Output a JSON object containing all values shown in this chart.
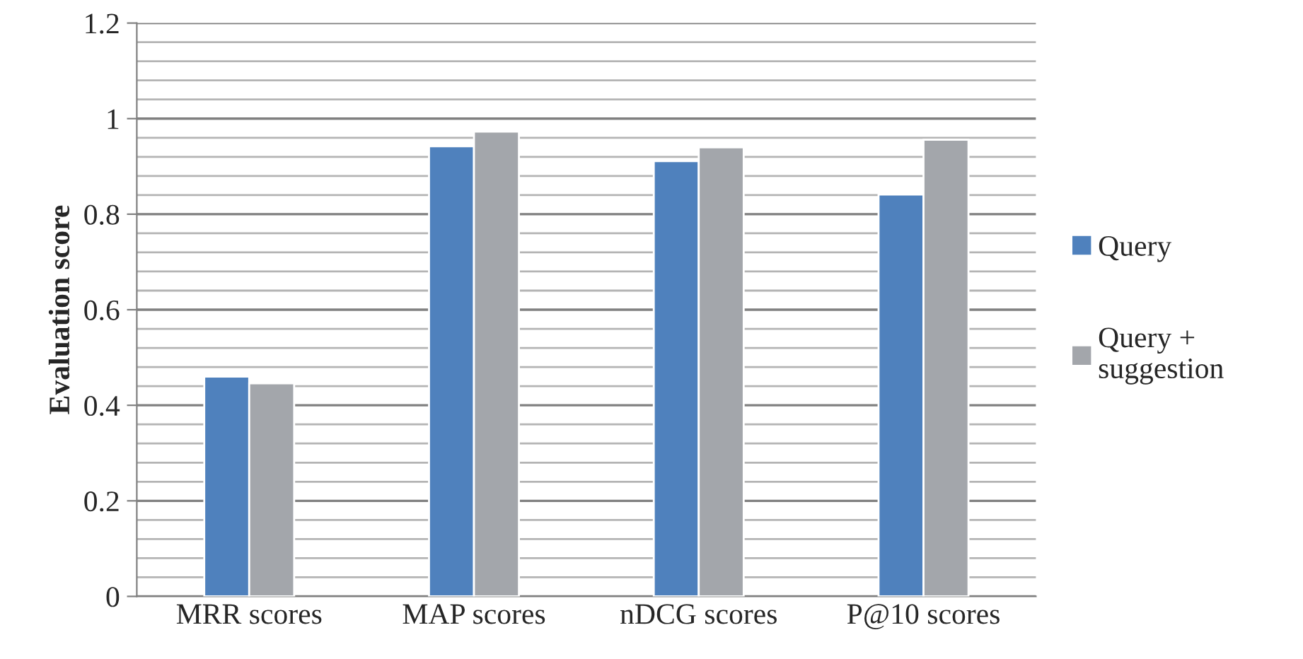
{
  "chart_data": {
    "type": "bar",
    "ylabel": "Evaluation score",
    "categories": [
      "MRR scores",
      "MAP scores",
      "nDCG scores",
      "P@10 scores"
    ],
    "series": [
      {
        "name": "Query",
        "color": "#4f81bd",
        "values": [
          0.46,
          0.942,
          0.911,
          0.841
        ]
      },
      {
        "name": "Query + suggestion",
        "color": "#a3a6ab",
        "values": [
          0.446,
          0.973,
          0.94,
          0.956
        ]
      }
    ],
    "ylim": [
      0,
      1.2
    ],
    "yticks": [
      0,
      0.2,
      0.4,
      0.6,
      0.8,
      {
        "value": 1.0,
        "label": "1"
      },
      1.2
    ],
    "grid": "y",
    "legend": "right"
  }
}
